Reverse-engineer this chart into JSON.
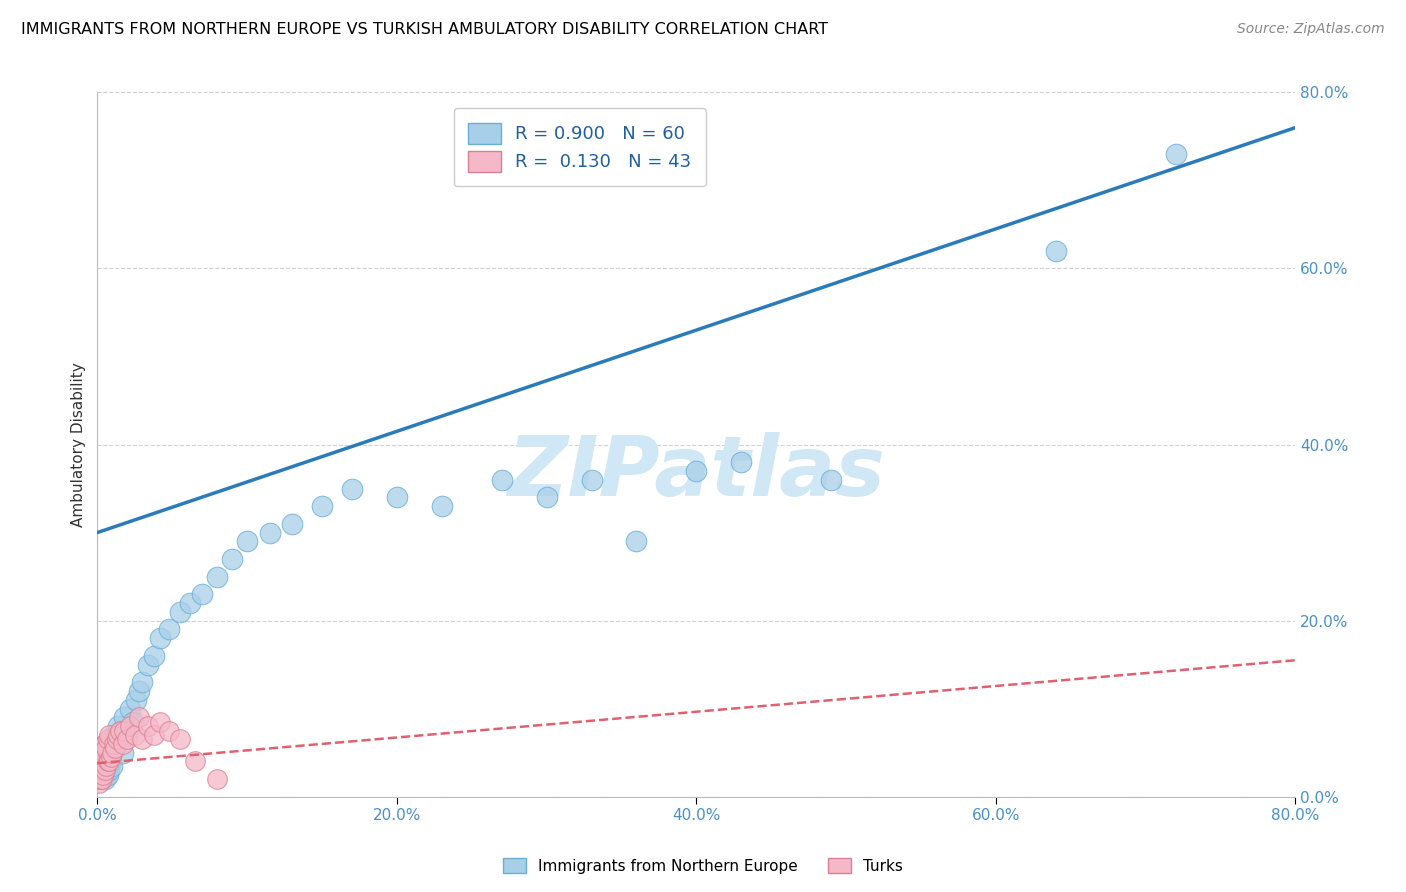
{
  "title": "IMMIGRANTS FROM NORTHERN EUROPE VS TURKISH AMBULATORY DISABILITY CORRELATION CHART",
  "source": "Source: ZipAtlas.com",
  "ylabel_label": "Ambulatory Disability",
  "legend_label1": "Immigrants from Northern Europe",
  "legend_label2": "Turks",
  "R1": 0.9,
  "N1": 60,
  "R2": 0.13,
  "N2": 43,
  "color1": "#a8cfe8",
  "color2": "#f5b8c8",
  "line_color1": "#2b7bba",
  "line_color2": "#e06070",
  "watermark": "ZIPatlas",
  "watermark_color": "#d0e8f5",
  "xlim": [
    0,
    0.8
  ],
  "ylim": [
    0,
    0.8
  ],
  "xticks": [
    0.0,
    0.2,
    0.4,
    0.6,
    0.8
  ],
  "yticks": [
    0.0,
    0.2,
    0.4,
    0.6,
    0.8
  ],
  "blue_line_x": [
    0.0,
    0.8
  ],
  "blue_line_y": [
    0.3,
    0.76
  ],
  "pink_line_x": [
    0.0,
    0.8
  ],
  "pink_line_y": [
    0.038,
    0.155
  ],
  "blue_x": [
    0.001,
    0.001,
    0.002,
    0.002,
    0.003,
    0.003,
    0.004,
    0.004,
    0.005,
    0.005,
    0.005,
    0.006,
    0.006,
    0.007,
    0.007,
    0.008,
    0.008,
    0.009,
    0.009,
    0.01,
    0.01,
    0.011,
    0.012,
    0.013,
    0.014,
    0.015,
    0.016,
    0.017,
    0.018,
    0.02,
    0.022,
    0.024,
    0.026,
    0.028,
    0.03,
    0.034,
    0.038,
    0.042,
    0.048,
    0.055,
    0.062,
    0.07,
    0.08,
    0.09,
    0.1,
    0.115,
    0.13,
    0.15,
    0.17,
    0.2,
    0.23,
    0.27,
    0.3,
    0.33,
    0.36,
    0.4,
    0.43,
    0.49,
    0.64,
    0.72
  ],
  "blue_y": [
    0.02,
    0.03,
    0.025,
    0.035,
    0.02,
    0.04,
    0.03,
    0.05,
    0.02,
    0.04,
    0.06,
    0.03,
    0.05,
    0.025,
    0.045,
    0.03,
    0.055,
    0.04,
    0.06,
    0.035,
    0.05,
    0.07,
    0.06,
    0.07,
    0.08,
    0.065,
    0.075,
    0.05,
    0.09,
    0.07,
    0.1,
    0.085,
    0.11,
    0.12,
    0.13,
    0.15,
    0.16,
    0.18,
    0.19,
    0.21,
    0.22,
    0.23,
    0.25,
    0.27,
    0.29,
    0.3,
    0.31,
    0.33,
    0.35,
    0.34,
    0.33,
    0.36,
    0.34,
    0.36,
    0.29,
    0.37,
    0.38,
    0.36,
    0.62,
    0.73
  ],
  "pink_x": [
    0.0,
    0.001,
    0.001,
    0.001,
    0.002,
    0.002,
    0.002,
    0.003,
    0.003,
    0.003,
    0.004,
    0.004,
    0.004,
    0.005,
    0.005,
    0.005,
    0.006,
    0.006,
    0.007,
    0.007,
    0.008,
    0.008,
    0.009,
    0.01,
    0.011,
    0.012,
    0.013,
    0.014,
    0.015,
    0.017,
    0.018,
    0.02,
    0.022,
    0.025,
    0.028,
    0.03,
    0.034,
    0.038,
    0.042,
    0.048,
    0.055,
    0.065,
    0.08
  ],
  "pink_y": [
    0.02,
    0.015,
    0.025,
    0.04,
    0.02,
    0.03,
    0.045,
    0.02,
    0.035,
    0.05,
    0.025,
    0.04,
    0.055,
    0.03,
    0.045,
    0.06,
    0.035,
    0.055,
    0.04,
    0.065,
    0.04,
    0.07,
    0.045,
    0.05,
    0.06,
    0.055,
    0.065,
    0.07,
    0.075,
    0.06,
    0.075,
    0.065,
    0.08,
    0.07,
    0.09,
    0.065,
    0.08,
    0.07,
    0.085,
    0.075,
    0.065,
    0.04,
    0.02
  ]
}
